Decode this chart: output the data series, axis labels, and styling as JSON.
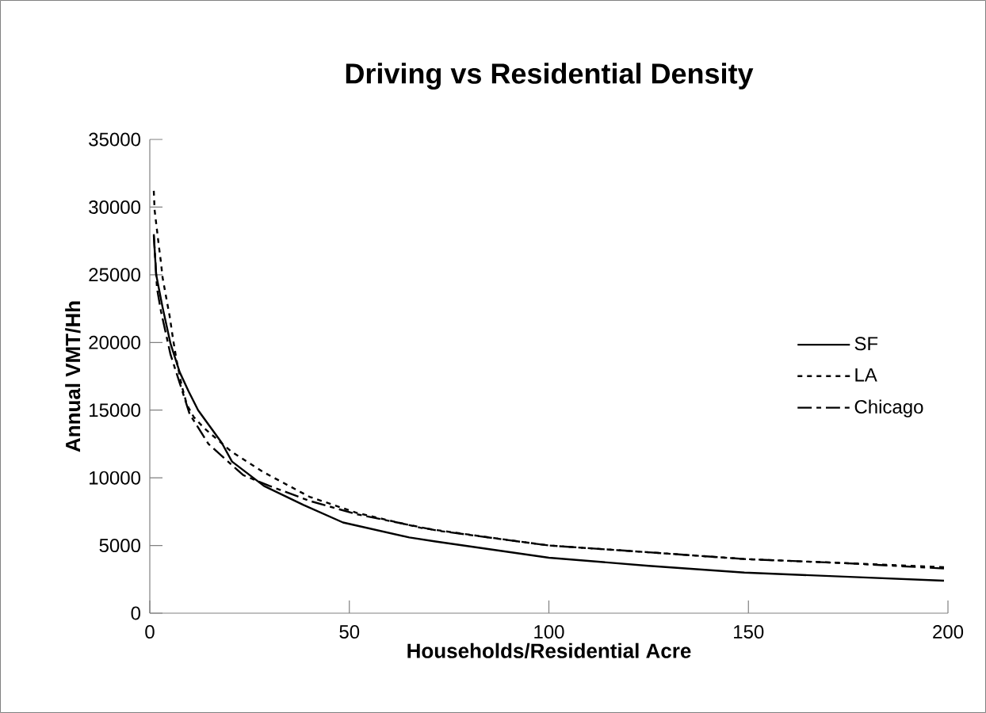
{
  "chart_data": {
    "type": "line",
    "title": "Driving vs Residential Density",
    "xlabel": "Households/Residential Acre",
    "ylabel": "Annual VMT/Hh",
    "xlim": [
      0,
      200
    ],
    "xticks": [
      0,
      50,
      100,
      150,
      200
    ],
    "ylim": [
      0,
      35000
    ],
    "yticks": [
      0,
      5000,
      10000,
      15000,
      20000,
      25000,
      30000,
      35000
    ],
    "grid": false,
    "legend": "right",
    "marker": "none",
    "series": [
      {
        "name": "SF",
        "color": "#000000",
        "line_style": "solid",
        "x": [
          1,
          1.6,
          3.2,
          5.2,
          7.5,
          9.7,
          12.1,
          18,
          20.6,
          28.6,
          38.5,
          48.4,
          65,
          71.6,
          100,
          125,
          149,
          174,
          199
        ],
        "values": [
          27900,
          25000,
          22600,
          19900,
          17800,
          16400,
          15000,
          12600,
          11200,
          9400,
          8000,
          6700,
          5600,
          5300,
          4100,
          3500,
          3000,
          2700,
          2400
        ]
      },
      {
        "name": "LA",
        "color": "#000000",
        "line_style": "dotted",
        "x": [
          1,
          1.2,
          2.2,
          2.8,
          3.2,
          4,
          5,
          5.8,
          6.7,
          8,
          9.3,
          11,
          13.5,
          20.6,
          28.6,
          40,
          52,
          68,
          85,
          100,
          125,
          149,
          174,
          199
        ],
        "values": [
          31200,
          29800,
          27300,
          25900,
          24800,
          23500,
          21900,
          20300,
          18700,
          16800,
          15400,
          14500,
          13700,
          11900,
          10400,
          8600,
          7400,
          6300,
          5600,
          5000,
          4500,
          4000,
          3700,
          3400
        ]
      },
      {
        "name": "Chicago",
        "color": "#000000",
        "line_style": "dashed",
        "x": [
          1,
          1.8,
          2.8,
          5.2,
          7.5,
          10,
          14.7,
          23.4,
          30,
          40,
          52,
          72,
          100,
          125,
          149,
          174,
          199
        ],
        "values": [
          28000,
          24000,
          22300,
          19100,
          17000,
          14700,
          12500,
          10200,
          9400,
          8300,
          7300,
          6100,
          5000,
          4500,
          4000,
          3700,
          3300
        ]
      }
    ]
  }
}
